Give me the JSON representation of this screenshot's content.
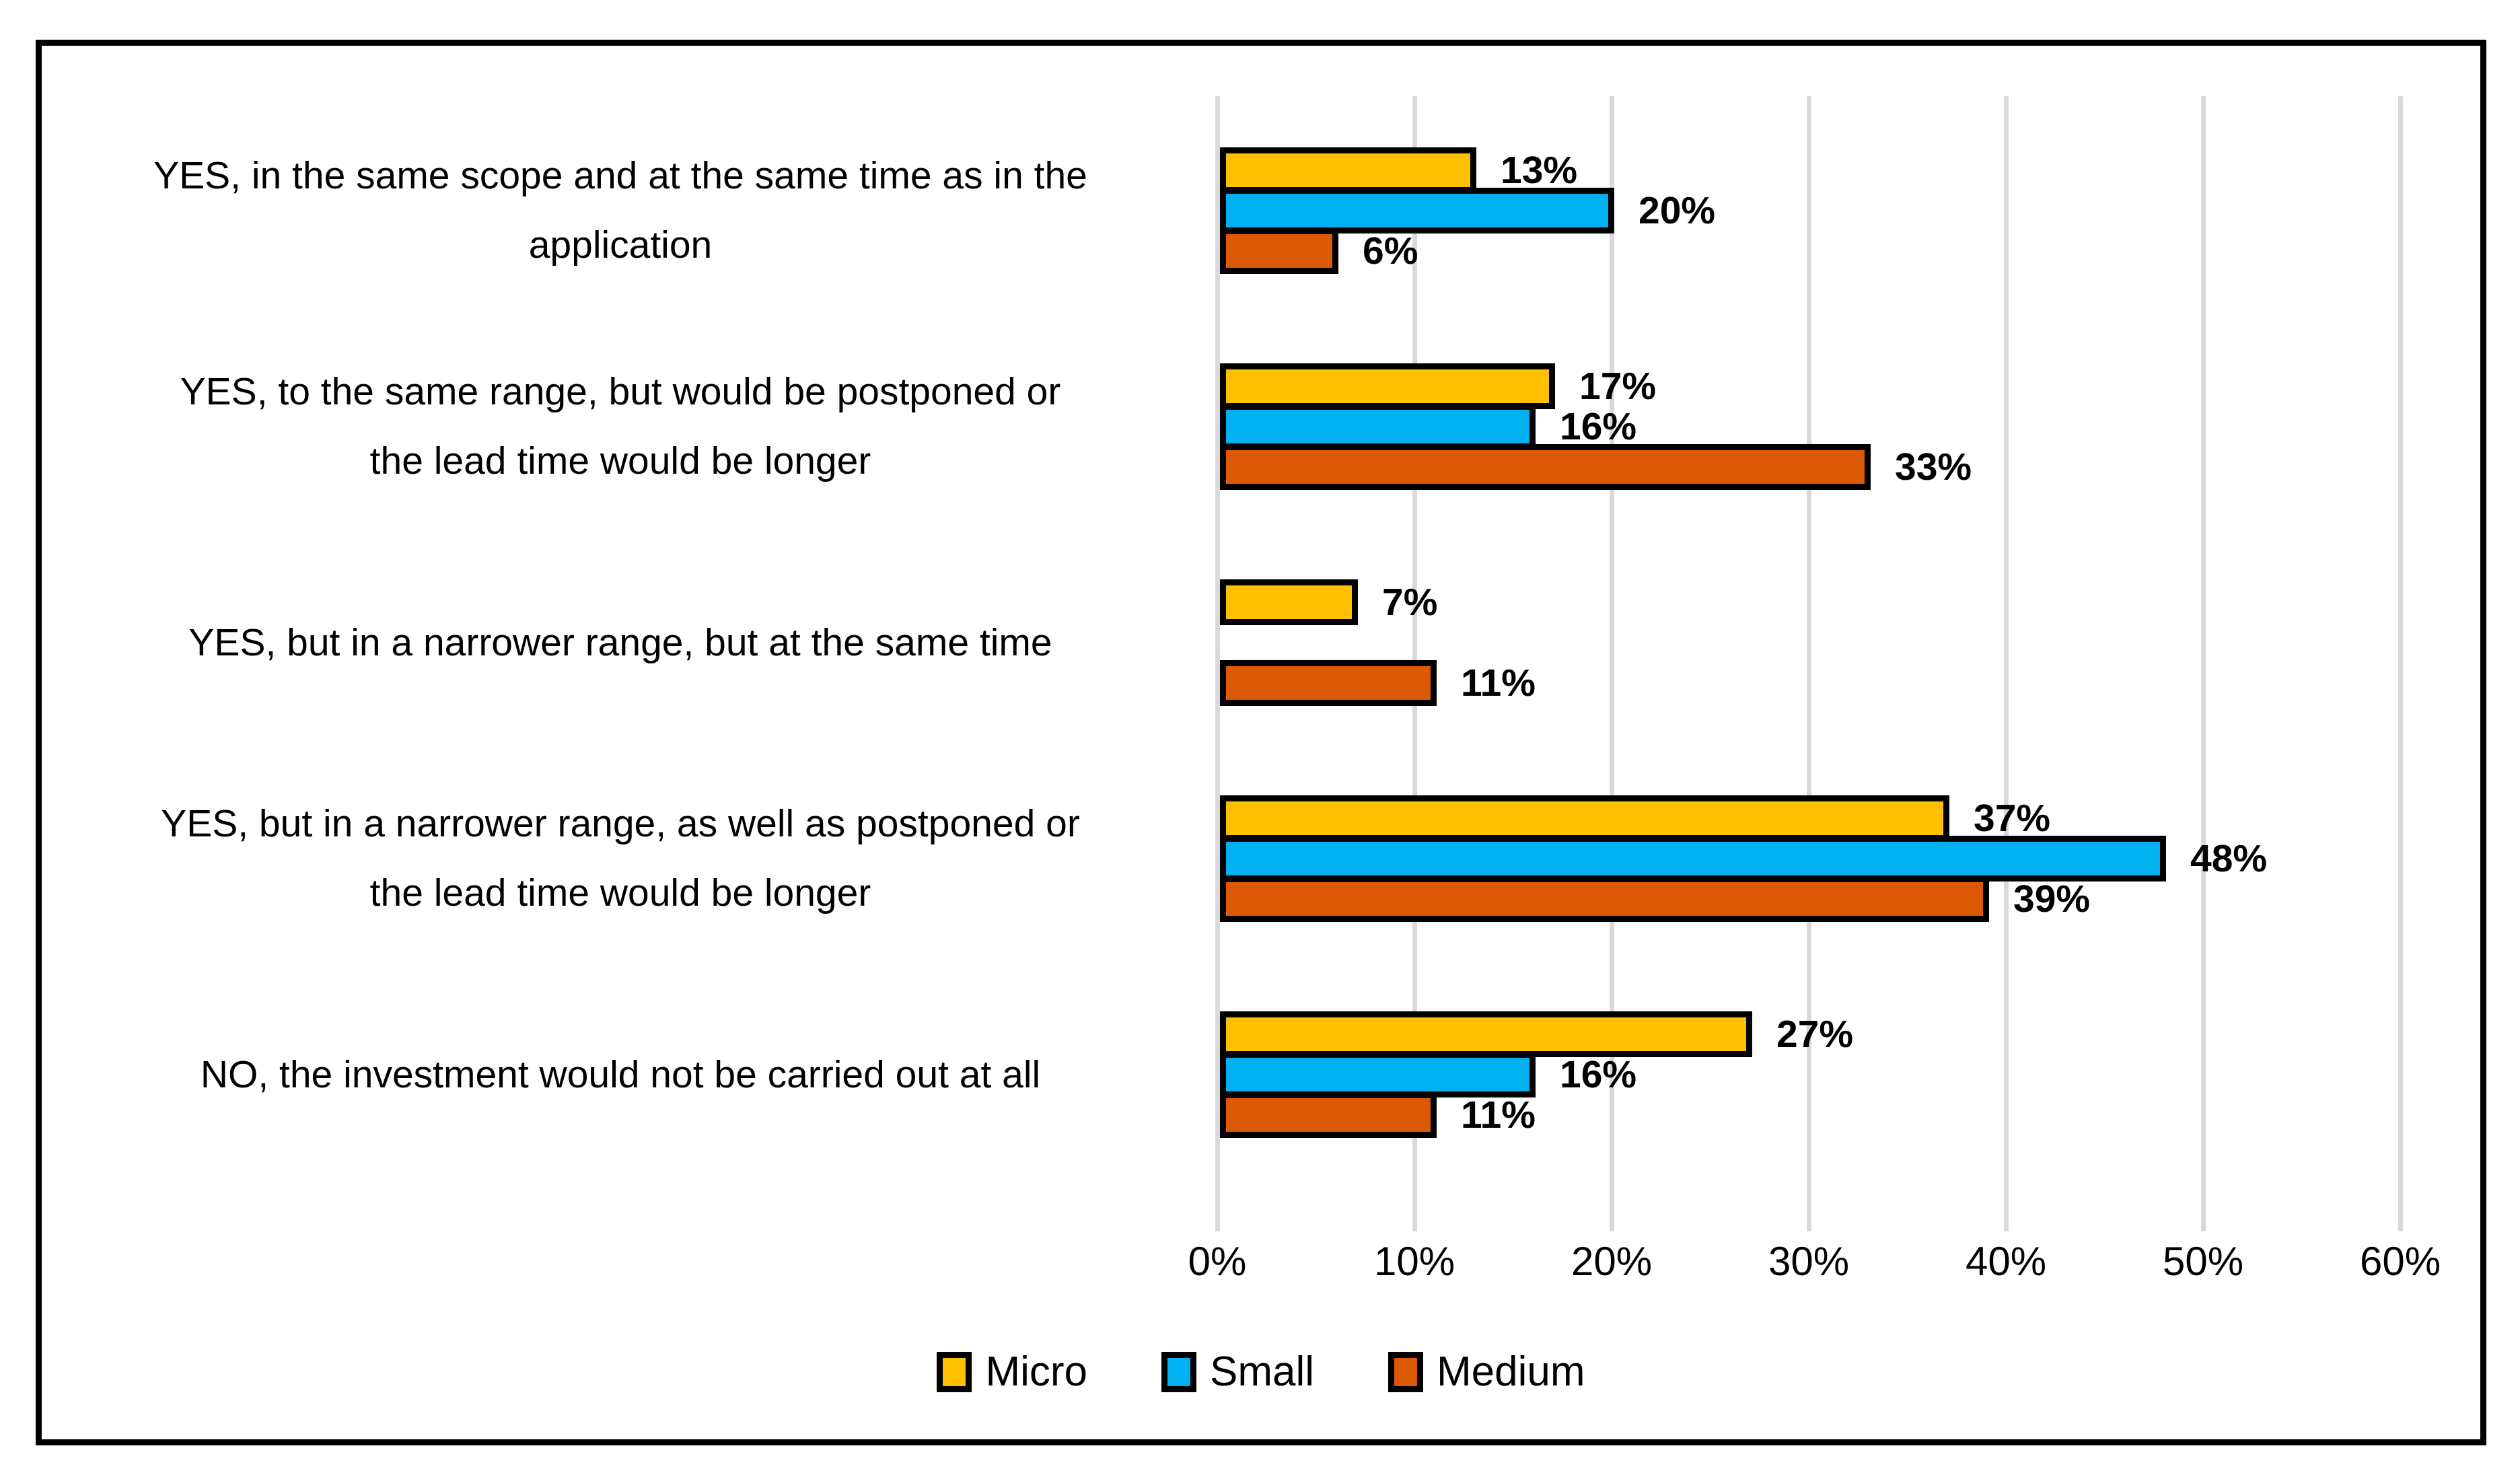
{
  "figure": {
    "background_color": "#FFFFFF",
    "frame_border_color": "#000000",
    "gridline_color": "#D9D9D9",
    "bar_outline_color": "#000000",
    "text_color": "#000000"
  },
  "chart_data": {
    "type": "bar",
    "orientation": "horizontal",
    "title": "",
    "xlabel": "",
    "ylabel": "",
    "xlim": [
      0,
      60
    ],
    "grid": true,
    "value_suffix": "%",
    "categories": [
      "YES, in the same scope and at the same time as in the\napplication",
      "YES, to the same range, but would be postponed or\nthe lead time would be longer",
      "YES, but in a narrower range, but at the same time",
      "YES, but in a narrower range, as well as postponed or\nthe lead time would be longer",
      "NO, the investment would not be carried out at all"
    ],
    "series": [
      {
        "name": "Micro",
        "color": "#FFC000",
        "values": [
          13,
          17,
          7,
          37,
          27
        ],
        "labels": [
          "13%",
          "17%",
          "7%",
          "37%",
          "27%"
        ]
      },
      {
        "name": "Small",
        "color": "#00B0F0",
        "values": [
          20,
          16,
          null,
          48,
          16
        ],
        "labels": [
          "20%",
          "16%",
          null,
          "48%",
          "16%"
        ]
      },
      {
        "name": "Medium",
        "color": "#DD5A05",
        "values": [
          6,
          33,
          11,
          39,
          11
        ],
        "labels": [
          "6%",
          "33%",
          "11%",
          "39%",
          "11%"
        ]
      }
    ],
    "x_ticks": [
      {
        "label": "0%",
        "value": 0
      },
      {
        "label": "10%",
        "value": 10
      },
      {
        "label": "20%",
        "value": 20
      },
      {
        "label": "30%",
        "value": 30
      },
      {
        "label": "40%",
        "value": 40
      },
      {
        "label": "50%",
        "value": 50
      },
      {
        "label": "60%",
        "value": 60
      }
    ],
    "legend": {
      "position": "bottom-center",
      "entries": [
        "Micro",
        "Small",
        "Medium"
      ]
    }
  }
}
